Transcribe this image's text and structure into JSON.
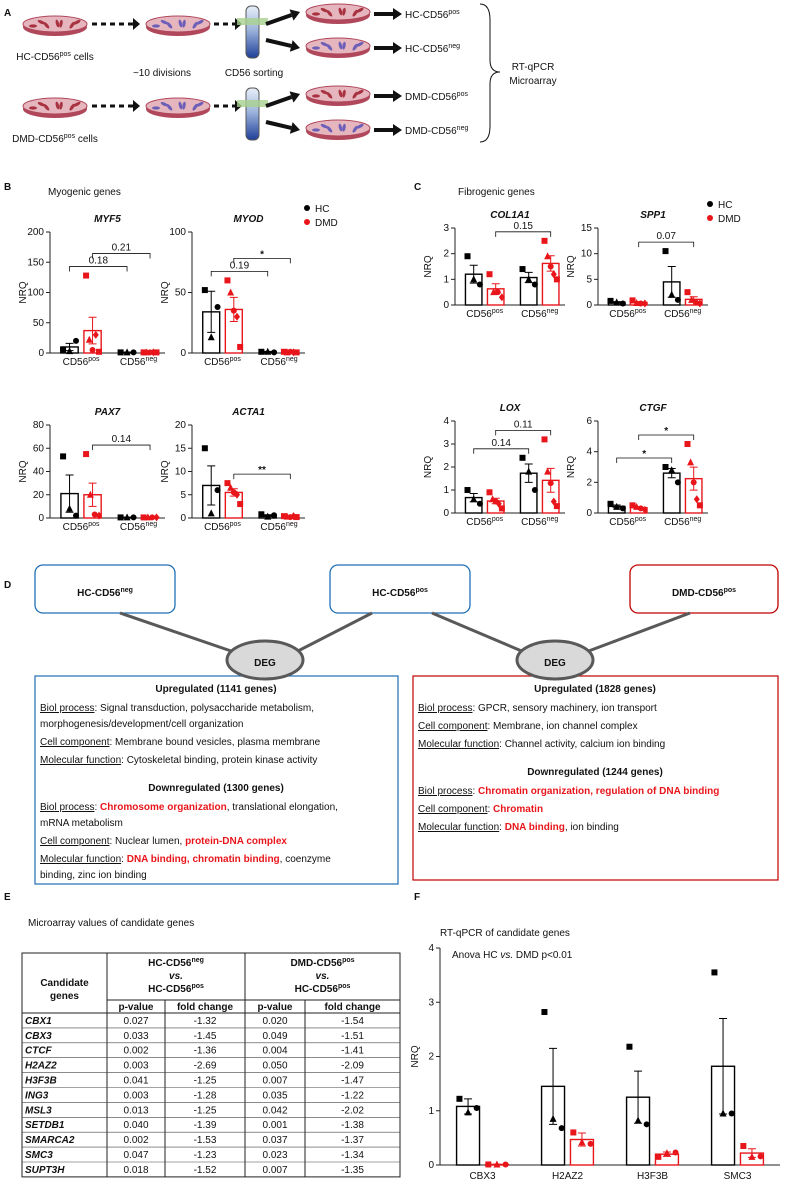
{
  "panel_labels": [
    "A",
    "B",
    "C",
    "D",
    "E",
    "F"
  ],
  "panel_titles": {
    "B": "Myogenic genes",
    "C": "Fibrogenic genes",
    "E": "Microarray values of candidate genes",
    "F": "RT-qPCR of candidate genes"
  },
  "scheme": {
    "sources": [
      [
        "HC-CD56",
        "pos",
        " cells"
      ],
      [
        "DMD-CD56",
        "pos",
        " cells"
      ]
    ],
    "divisions": "~10 divisions",
    "sorting": "CD56 sorting",
    "outputs": [
      [
        "HC-CD56",
        "pos"
      ],
      [
        "HC-CD56",
        "neg"
      ],
      [
        "DMD-CD56",
        "pos"
      ],
      [
        "DMD-CD56",
        "neg"
      ]
    ],
    "methods": [
      "RT-qPCR",
      "Microarray"
    ]
  },
  "chart_data": [
    {
      "type": "bar",
      "title": "MYF5",
      "ylabel": "NRQ",
      "categories": [
        [
          "CD56",
          "pos"
        ],
        [
          "CD56",
          "neg"
        ]
      ],
      "ylim": [
        0,
        200
      ],
      "yticks": [
        0,
        50,
        100,
        150,
        200
      ],
      "series": [
        {
          "color": "#000000",
          "values": [
            10,
            1
          ],
          "errors": [
            6,
            0.5
          ],
          "points": [
            [
              5,
              3,
              20
            ],
            [
              1,
              1,
              1
            ]
          ],
          "brackets": [
            {
              "label": "0.18"
            }
          ]
        },
        {
          "color": "#e8161b",
          "values": [
            37,
            1
          ],
          "errors": [
            22,
            0.4
          ],
          "points": [
            [
              128,
              22,
              5,
              30,
              2
            ],
            [
              1,
              1,
              1,
              1,
              1
            ]
          ],
          "brackets": [
            {
              "label": "0.21"
            }
          ]
        }
      ]
    },
    {
      "type": "bar",
      "title": "MYOD",
      "ylabel": "NRQ",
      "categories": [
        [
          "CD56",
          "pos"
        ],
        [
          "CD56",
          "neg"
        ]
      ],
      "ylim": [
        0,
        100
      ],
      "yticks": [
        0,
        50,
        100
      ],
      "legend": "upper right",
      "series": [
        {
          "name": "HC",
          "color": "#000000",
          "values": [
            34,
            1
          ],
          "errors": [
            17,
            0.3
          ],
          "points": [
            [
              52,
              13,
              38
            ],
            [
              1,
              1,
              0.5
            ]
          ],
          "brackets": [
            {
              "label": "0.19"
            }
          ]
        },
        {
          "name": "DMD",
          "color": "#e8161b",
          "values": [
            36,
            0.7
          ],
          "errors": [
            10,
            0.2
          ],
          "points": [
            [
              60,
              50,
              35,
              30,
              5
            ],
            [
              1,
              0.5,
              1,
              0.5,
              0.5
            ]
          ],
          "brackets": [
            {
              "label": "*"
            }
          ]
        }
      ]
    },
    {
      "type": "bar",
      "title": "PAX7",
      "ylabel": "NRQ",
      "categories": [
        [
          "CD56",
          "pos"
        ],
        [
          "CD56",
          "neg"
        ]
      ],
      "ylim": [
        0,
        80
      ],
      "yticks": [
        0,
        20,
        40,
        60,
        80
      ],
      "series": [
        {
          "color": "#000000",
          "values": [
            21,
            0.5
          ],
          "errors": [
            16,
            0.1
          ],
          "points": [
            [
              53,
              8,
              2
            ],
            [
              0.5,
              0.5,
              0.5
            ]
          ]
        },
        {
          "color": "#e8161b",
          "values": [
            20,
            0.5
          ],
          "errors": [
            10,
            0.1
          ],
          "points": [
            [
              55,
              20,
              3,
              2
            ],
            [
              0.5,
              0.5,
              0.5,
              0.5
            ]
          ],
          "brackets": [
            {
              "label": "0.14"
            }
          ]
        }
      ]
    },
    {
      "type": "bar",
      "title": "ACTA1",
      "ylabel": "NRQ",
      "categories": [
        [
          "CD56",
          "pos"
        ],
        [
          "CD56",
          "neg"
        ]
      ],
      "ylim": [
        0,
        20
      ],
      "yticks": [
        0,
        5,
        10,
        15,
        20
      ],
      "series": [
        {
          "color": "#000000",
          "values": [
            7,
            0.5
          ],
          "errors": [
            4.2,
            0.2
          ],
          "points": [
            [
              15,
              1,
              6
            ],
            [
              0.8,
              0.3,
              0.6
            ]
          ]
        },
        {
          "color": "#e8161b",
          "values": [
            5.5,
            0.3
          ],
          "errors": [
            0.8,
            0.05
          ],
          "points": [
            [
              7.5,
              6.5,
              5.5,
              5,
              3
            ],
            [
              0.4,
              0.3,
              0.2,
              0.4,
              0.2
            ]
          ],
          "brackets": [
            {
              "label": "**"
            }
          ]
        }
      ]
    },
    {
      "type": "bar",
      "title": "COL1A1",
      "ylabel": "NRQ",
      "categories": [
        [
          "CD56",
          "pos"
        ],
        [
          "CD56",
          "neg"
        ]
      ],
      "ylim": [
        0,
        3
      ],
      "yticks": [
        0,
        1,
        2,
        3
      ],
      "series": [
        {
          "color": "#000000",
          "values": [
            1.2,
            1.07
          ],
          "errors": [
            0.35,
            0.2
          ],
          "points": [
            [
              1.9,
              1.0,
              0.8
            ],
            [
              1.4,
              1.0,
              0.8
            ]
          ]
        },
        {
          "color": "#e8161b",
          "values": [
            0.63,
            1.62
          ],
          "errors": [
            0.2,
            0.3
          ],
          "points": [
            [
              1.2,
              0.5,
              0.5,
              0.3
            ],
            [
              2.5,
              1.9,
              1.5,
              1.2,
              1.0
            ]
          ],
          "brackets": [
            {
              "label": "0.15"
            }
          ]
        }
      ]
    },
    {
      "type": "bar",
      "title": "SPP1",
      "ylabel": "NRQ",
      "categories": [
        [
          "CD56",
          "pos"
        ],
        [
          "CD56",
          "neg"
        ]
      ],
      "ylim": [
        0,
        15
      ],
      "yticks": [
        0,
        5,
        10,
        15
      ],
      "legend": "upper right",
      "series": [
        {
          "name": "HC",
          "color": "#000000",
          "values": [
            0.5,
            4.5
          ],
          "errors": [
            0.15,
            3
          ],
          "points": [
            [
              0.8,
              0.5,
              0.3
            ],
            [
              10.5,
              2,
              1
            ]
          ]
        },
        {
          "name": "DMD",
          "color": "#e8161b",
          "values": [
            0.5,
            1.1
          ],
          "errors": [
            0.15,
            0.5
          ],
          "points": [
            [
              0.9,
              0.4,
              0.3,
              0.3
            ],
            [
              2.5,
              1,
              0.5,
              0.3
            ]
          ],
          "brackets": [
            {
              "label": "0.07"
            }
          ]
        }
      ]
    },
    {
      "type": "bar",
      "title": "LOX",
      "ylabel": "NRQ",
      "categories": [
        [
          "CD56",
          "pos"
        ],
        [
          "CD56",
          "neg"
        ]
      ],
      "ylim": [
        0,
        4
      ],
      "yticks": [
        0,
        1,
        2,
        3,
        4
      ],
      "series": [
        {
          "color": "#000000",
          "values": [
            0.67,
            1.73
          ],
          "errors": [
            0.18,
            0.4
          ],
          "points": [
            [
              1.0,
              0.6,
              0.4
            ],
            [
              2.4,
              1.8,
              1.0
            ]
          ],
          "brackets": [
            {
              "label": "0.14"
            }
          ]
        },
        {
          "color": "#e8161b",
          "values": [
            0.52,
            1.42
          ],
          "errors": [
            0.12,
            0.52
          ],
          "points": [
            [
              0.9,
              0.6,
              0.5,
              0.4,
              0.2
            ],
            [
              3.2,
              1.8,
              1.3,
              0.5,
              0.3
            ]
          ],
          "brackets": [
            {
              "label": "0.11"
            }
          ]
        }
      ]
    },
    {
      "type": "bar",
      "title": "CTGF",
      "ylabel": "NRQ",
      "categories": [
        [
          "CD56",
          "pos"
        ],
        [
          "CD56",
          "neg"
        ]
      ],
      "ylim": [
        0,
        6
      ],
      "yticks": [
        0,
        2,
        4,
        6
      ],
      "series": [
        {
          "color": "#000000",
          "values": [
            0.43,
            2.6
          ],
          "errors": [
            0.09,
            0.3
          ],
          "points": [
            [
              0.6,
              0.4,
              0.3
            ],
            [
              3.0,
              2.8,
              2.0
            ]
          ],
          "brackets": [
            {
              "label": "*"
            }
          ]
        },
        {
          "color": "#e8161b",
          "values": [
            0.35,
            2.24
          ],
          "errors": [
            0.06,
            0.75
          ],
          "points": [
            [
              0.5,
              0.4,
              0.3,
              0.2
            ],
            [
              4.5,
              3.3,
              2.0,
              0.9,
              0.5
            ]
          ],
          "brackets": [
            {
              "label": "*"
            }
          ]
        }
      ]
    },
    {
      "type": "bar",
      "ylabel": "NRQ",
      "annotation": [
        "Anova HC ",
        "vs.",
        " DMD p<0.01"
      ],
      "categories": [
        "CBX3",
        "H2AZ2",
        "H3F3B",
        "SMC3"
      ],
      "ylim": [
        0,
        4
      ],
      "yticks": [
        0,
        1,
        2,
        3,
        4
      ],
      "series": [
        {
          "color": "#000000",
          "values": [
            1.08,
            1.45,
            1.25,
            1.82
          ],
          "errors": [
            0.14,
            0.7,
            0.48,
            0.88
          ],
          "points": [
            [
              1.22,
              0.97,
              1.05
            ],
            [
              2.82,
              0.85,
              0.68
            ],
            [
              2.18,
              0.82,
              0.75
            ],
            [
              3.55,
              0.95,
              0.95
            ]
          ]
        },
        {
          "color": "#e8161b",
          "values": [
            0.01,
            0.47,
            0.2,
            0.22
          ],
          "errors": [
            0.005,
            0.12,
            0.04,
            0.08
          ],
          "points": [
            [
              0.01,
              0.01,
              0.01
            ],
            [
              0.6,
              0.42,
              0.39
            ],
            [
              0.15,
              0.22,
              0.23
            ],
            [
              0.35,
              0.15,
              0.16
            ]
          ]
        }
      ]
    }
  ],
  "diagram": {
    "nodes": [
      {
        "text": [
          "HC-CD56",
          "neg"
        ],
        "color": "#1f6fb5"
      },
      {
        "text": [
          "HC-CD56",
          "pos"
        ],
        "color": "#1f6fb5"
      },
      {
        "text": [
          "DMD-CD56",
          "pos"
        ],
        "color": "#c00000"
      }
    ],
    "deg": [
      "DEG",
      "DEG"
    ],
    "panels": [
      {
        "color": "#1f6fb5",
        "sections": [
          {
            "heading": "Upregulated (1141 genes)",
            "color": "#c55a11",
            "items": [
              {
                "label": "Biol process",
                "lines": [
                  [
                    ": Signal transduction, polysaccharide metabolism,"
                  ],
                  [
                    "morphogenesis/development/cell organization"
                  ]
                ]
              },
              {
                "label": "Cell component",
                "lines": [
                  [
                    ": Membrane bound vesicles, plasma membrane"
                  ]
                ]
              },
              {
                "label": "Molecular function",
                "lines": [
                  [
                    ": Cytoskeletal binding, protein kinase activity"
                  ]
                ]
              }
            ]
          },
          {
            "heading": "Downregulated (1300 genes)",
            "color": "#70ad47",
            "items": [
              {
                "label": "Biol process",
                "lines": [
                  [
                    ": ",
                    {
                      "text": "Chromosome organization",
                      "color": "#e8161b"
                    },
                    ", translational elongation,"
                  ],
                  [
                    "mRNA metabolism"
                  ]
                ]
              },
              {
                "label": "Cell component",
                "lines": [
                  [
                    ": Nuclear lumen, ",
                    {
                      "text": "protein-DNA complex",
                      "color": "#e8161b"
                    }
                  ]
                ]
              },
              {
                "label": "Molecular function",
                "lines": [
                  [
                    ": ",
                    {
                      "text": "DNA binding, chromatin binding",
                      "color": "#e8161b"
                    },
                    ", coenzyme"
                  ],
                  [
                    "binding, zinc ion binding"
                  ]
                ]
              }
            ]
          }
        ]
      },
      {
        "color": "#c00000",
        "sections": [
          {
            "heading": "Upregulated (1828 genes)",
            "color": "#c55a11",
            "items": [
              {
                "label": "Biol process",
                "lines": [
                  [
                    ": GPCR, sensory machinery, ion transport"
                  ]
                ]
              },
              {
                "label": "Cell component",
                "lines": [
                  [
                    ": Membrane, ion channel complex"
                  ]
                ]
              },
              {
                "label": "Molecular function",
                "lines": [
                  [
                    ": Channel activity, calcium ion binding"
                  ]
                ]
              }
            ]
          },
          {
            "heading": "Downregulated (1244 genes)",
            "color": "#70ad47",
            "items": [
              {
                "label": "Biol process",
                "lines": [
                  [
                    ": ",
                    {
                      "text": "Chromatin organization, regulation of DNA binding",
                      "color": "#e8161b"
                    }
                  ]
                ]
              },
              {
                "label": "Cell component",
                "lines": [
                  [
                    ": ",
                    {
                      "text": "Chromatin",
                      "color": "#e8161b"
                    }
                  ]
                ]
              },
              {
                "label": "Molecular function",
                "lines": [
                  [
                    ": ",
                    {
                      "text": "DNA binding",
                      "color": "#e8161b"
                    },
                    ", ion binding"
                  ]
                ]
              }
            ]
          }
        ]
      }
    ]
  },
  "table": {
    "corner": [
      "Candidate",
      "genes"
    ],
    "groups": [
      [
        [
          "HC-CD56",
          "neg"
        ],
        [
          "vs."
        ],
        [
          "HC-CD56",
          "pos"
        ]
      ],
      [
        [
          "DMD-CD56",
          "pos"
        ],
        [
          "vs."
        ],
        [
          "HC-CD56",
          "pos"
        ]
      ]
    ],
    "subheader": [
      "p-value",
      "fold change",
      "p-value",
      "fold change"
    ],
    "rows": [
      [
        "CBX1",
        "0.027",
        "-1.32",
        "0.020",
        "-1.54"
      ],
      [
        "CBX3",
        "0.033",
        "-1.45",
        "0.049",
        "-1.51"
      ],
      [
        "CTCF",
        "0.002",
        "-1.36",
        "0.004",
        "-1.41"
      ],
      [
        "H2AZ2",
        "0.003",
        "-2.69",
        "0.050",
        "-2.09"
      ],
      [
        "H3F3B",
        "0.041",
        "-1.25",
        "0.007",
        "-1.47"
      ],
      [
        "ING3",
        "0.003",
        "-1.28",
        "0.035",
        "-1.22"
      ],
      [
        "MSL3",
        "0.013",
        "-1.25",
        "0.042",
        "-2.02"
      ],
      [
        "SETDB1",
        "0.040",
        "-1.39",
        "0.001",
        "-1.38"
      ],
      [
        "SMARCA2",
        "0.002",
        "-1.53",
        "0.037",
        "-1.37"
      ],
      [
        "SMC3",
        "0.047",
        "-1.23",
        "0.023",
        "-1.34"
      ],
      [
        "SUPT3H",
        "0.018",
        "-1.52",
        "0.007",
        "-1.35"
      ]
    ]
  }
}
